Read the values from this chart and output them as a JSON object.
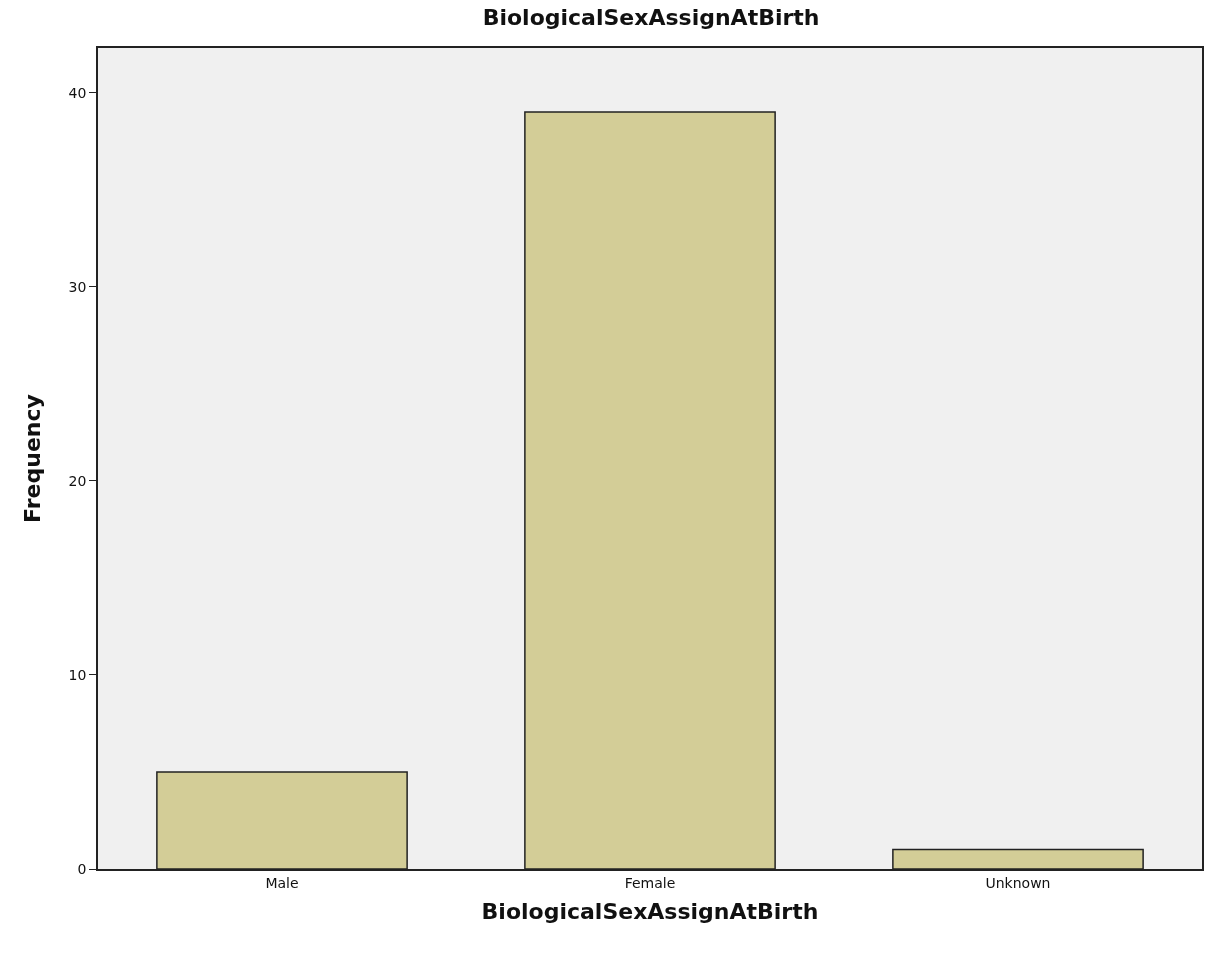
{
  "chart_data": {
    "type": "bar",
    "title": "BiologicalSexAssignAtBirth",
    "xlabel": "BiologicalSexAssignAtBirth",
    "ylabel": "Frequency",
    "categories": [
      "Male",
      "Female",
      "Unknown"
    ],
    "values": [
      5,
      39,
      1
    ],
    "color": "#d3cd97",
    "ylim": [
      0,
      42.3
    ],
    "yticks": [
      0,
      10,
      20,
      30,
      40
    ]
  }
}
